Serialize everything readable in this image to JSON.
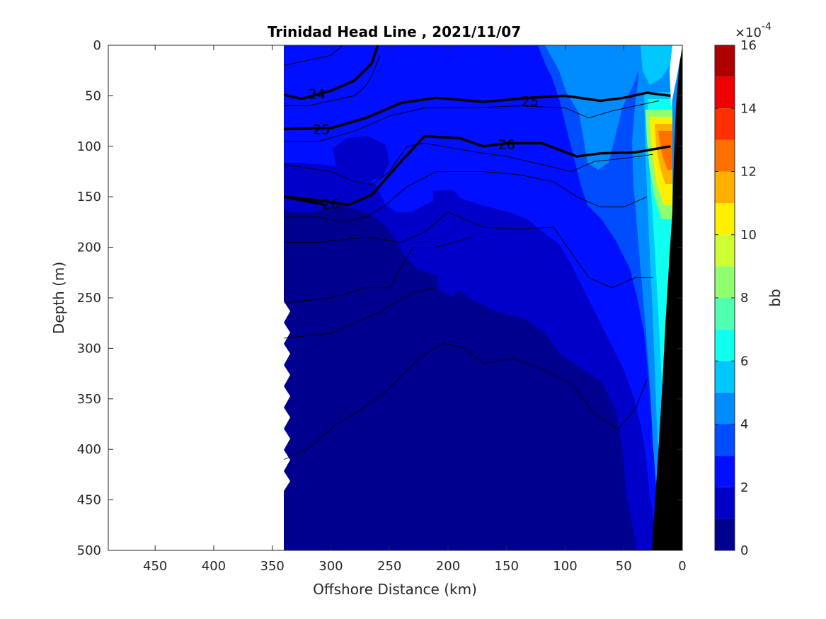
{
  "chart_data": {
    "type": "heatmap",
    "title": "Trinidad Head Line , 2021/11/07",
    "xlabel": "Offshore Distance (km)",
    "ylabel": "Depth (m)",
    "xlim": [
      490,
      0
    ],
    "ylim": [
      500,
      0
    ],
    "x_reversed": true,
    "y_reversed": true,
    "x_ticks": [
      450,
      400,
      350,
      300,
      250,
      200,
      150,
      100,
      50,
      0
    ],
    "y_ticks": [
      0,
      50,
      100,
      150,
      200,
      250,
      300,
      350,
      400,
      450,
      500
    ],
    "data_extent_x": [
      340,
      0
    ],
    "colorbar": {
      "label": "bb",
      "exponent": "×10",
      "exponent_power": "-4",
      "range": [
        0,
        16
      ],
      "ticks": [
        0,
        2,
        4,
        6,
        8,
        10,
        12,
        14,
        16
      ],
      "levels": [
        {
          "min": 0,
          "max": 1,
          "color": "#00008f"
        },
        {
          "min": 1,
          "max": 2,
          "color": "#0000c8"
        },
        {
          "min": 2,
          "max": 3,
          "color": "#0010ff"
        },
        {
          "min": 3,
          "max": 4,
          "color": "#004cff"
        },
        {
          "min": 4,
          "max": 5,
          "color": "#008cff"
        },
        {
          "min": 5,
          "max": 6,
          "color": "#00c8ff"
        },
        {
          "min": 6,
          "max": 7,
          "color": "#10ffef"
        },
        {
          "min": 7,
          "max": 8,
          "color": "#50ffaf"
        },
        {
          "min": 8,
          "max": 9,
          "color": "#8fff70"
        },
        {
          "min": 9,
          "max": 10,
          "color": "#cfff30"
        },
        {
          "min": 10,
          "max": 11,
          "color": "#ffef00"
        },
        {
          "min": 11,
          "max": 12,
          "color": "#ffb000"
        },
        {
          "min": 12,
          "max": 13,
          "color": "#ff7000"
        },
        {
          "min": 13,
          "max": 14,
          "color": "#ff3000"
        },
        {
          "min": 14,
          "max": 15,
          "color": "#ef0000"
        },
        {
          "min": 15,
          "max": 16,
          "color": "#af0000"
        }
      ]
    },
    "bathymetry_color": "#000000",
    "density_contours": [
      {
        "label": "24",
        "bold": true,
        "points": [
          [
            340,
            49
          ],
          [
            325,
            53
          ],
          [
            300,
            45
          ],
          [
            280,
            35
          ],
          [
            265,
            18
          ],
          [
            260,
            0
          ]
        ],
        "label_at": [
          312,
          48
        ]
      },
      {
        "label": "25",
        "bold": true,
        "points": [
          [
            340,
            83
          ],
          [
            300,
            82
          ],
          [
            270,
            72
          ],
          [
            240,
            57
          ],
          [
            210,
            52
          ],
          [
            170,
            56
          ],
          [
            130,
            52
          ],
          [
            100,
            50
          ],
          [
            70,
            55
          ],
          [
            50,
            52
          ],
          [
            30,
            47
          ],
          [
            10,
            50
          ]
        ],
        "label_at": [
          130,
          55
        ]
      },
      {
        "label": "25",
        "bold": true,
        "points": [
          [
            340,
            83
          ],
          [
            310,
            82
          ]
        ],
        "label_at": [
          308,
          83
        ]
      },
      {
        "label": "26",
        "bold": true,
        "points": [
          [
            340,
            150
          ],
          [
            320,
            152
          ],
          [
            285,
            158
          ],
          [
            265,
            148
          ],
          [
            240,
            115
          ],
          [
            220,
            90
          ],
          [
            190,
            92
          ],
          [
            170,
            100
          ],
          [
            150,
            97
          ],
          [
            120,
            97
          ],
          [
            90,
            110
          ],
          [
            70,
            107
          ],
          [
            40,
            106
          ],
          [
            10,
            100
          ]
        ],
        "label_at": [
          150,
          98
        ]
      },
      {
        "label": "26",
        "bold": true,
        "points": [
          [
            340,
            150
          ],
          [
            305,
            158
          ]
        ],
        "label_at": [
          300,
          157
        ]
      }
    ],
    "thin_contours": [
      [
        [
          340,
          20
        ],
        [
          320,
          15
        ],
        [
          300,
          10
        ],
        [
          290,
          0
        ]
      ],
      [
        [
          340,
          60
        ],
        [
          320,
          60
        ],
        [
          300,
          55
        ],
        [
          280,
          50
        ],
        [
          270,
          40
        ],
        [
          265,
          30
        ],
        [
          258,
          10
        ]
      ],
      [
        [
          340,
          95
        ],
        [
          310,
          95
        ],
        [
          280,
          85
        ],
        [
          250,
          70
        ],
        [
          220,
          62
        ],
        [
          180,
          62
        ],
        [
          140,
          60
        ],
        [
          100,
          62
        ],
        [
          80,
          72
        ],
        [
          60,
          65
        ],
        [
          40,
          60
        ],
        [
          20,
          55
        ]
      ],
      [
        [
          340,
          118
        ],
        [
          300,
          125
        ],
        [
          280,
          135
        ],
        [
          265,
          138
        ],
        [
          250,
          125
        ],
        [
          235,
          100
        ],
        [
          220,
          97
        ],
        [
          180,
          105
        ],
        [
          150,
          110
        ],
        [
          120,
          118
        ],
        [
          95,
          125
        ],
        [
          75,
          115
        ],
        [
          50,
          112
        ],
        [
          25,
          108
        ]
      ],
      [
        [
          340,
          170
        ],
        [
          310,
          170
        ],
        [
          290,
          175
        ],
        [
          270,
          170
        ],
        [
          255,
          160
        ],
        [
          235,
          140
        ],
        [
          210,
          125
        ],
        [
          170,
          125
        ],
        [
          140,
          128
        ],
        [
          110,
          135
        ],
        [
          90,
          150
        ],
        [
          70,
          160
        ],
        [
          50,
          160
        ],
        [
          30,
          150
        ]
      ],
      [
        [
          340,
          195
        ],
        [
          310,
          195
        ],
        [
          270,
          190
        ],
        [
          240,
          195
        ],
        [
          220,
          185
        ],
        [
          200,
          165
        ],
        [
          170,
          180
        ],
        [
          140,
          182
        ],
        [
          110,
          180
        ],
        [
          95,
          205
        ],
        [
          80,
          230
        ],
        [
          60,
          240
        ],
        [
          40,
          230
        ],
        [
          25,
          230
        ]
      ],
      [
        [
          340,
          255
        ],
        [
          300,
          250
        ],
        [
          270,
          240
        ],
        [
          250,
          240
        ],
        [
          230,
          200
        ],
        [
          210,
          200
        ],
        [
          180,
          190
        ]
      ],
      [
        [
          340,
          290
        ],
        [
          300,
          285
        ],
        [
          260,
          265
        ],
        [
          230,
          245
        ],
        [
          210,
          240
        ]
      ],
      [
        [
          340,
          410
        ],
        [
          320,
          400
        ],
        [
          295,
          375
        ],
        [
          280,
          365
        ],
        [
          255,
          345
        ],
        [
          225,
          310
        ],
        [
          205,
          295
        ],
        [
          185,
          300
        ],
        [
          170,
          315
        ],
        [
          145,
          310
        ],
        [
          120,
          320
        ],
        [
          95,
          335
        ],
        [
          75,
          365
        ],
        [
          55,
          380
        ],
        [
          40,
          360
        ],
        [
          30,
          330
        ]
      ]
    ]
  }
}
